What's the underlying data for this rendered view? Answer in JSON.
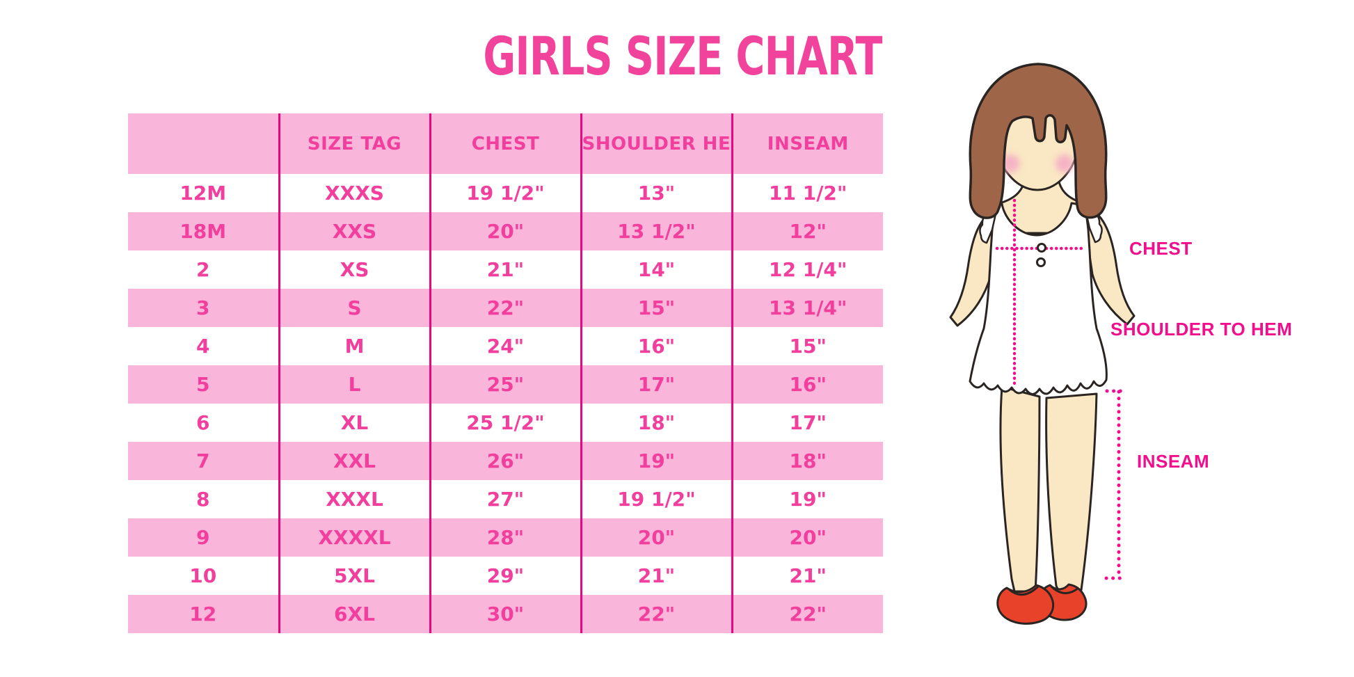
{
  "title": "GIRLS SIZE CHART",
  "chart_data": {
    "type": "table",
    "title": "GIRLS SIZE CHART",
    "columns": [
      "",
      "SIZE TAG",
      "CHEST",
      "SHOULDER HEM",
      "INSEAM"
    ],
    "rows": [
      [
        "12M",
        "XXXS",
        "19 1/2\"",
        "13\"",
        "11 1/2\""
      ],
      [
        "18M",
        "XXS",
        "20\"",
        "13 1/2\"",
        "12\""
      ],
      [
        "2",
        "XS",
        "21\"",
        "14\"",
        "12 1/4\""
      ],
      [
        "3",
        "S",
        "22\"",
        "15\"",
        "13 1/4\""
      ],
      [
        "4",
        "M",
        "24\"",
        "16\"",
        "15\""
      ],
      [
        "5",
        "L",
        "25\"",
        "17\"",
        "16\""
      ],
      [
        "6",
        "XL",
        "25 1/2\"",
        "18\"",
        "17\""
      ],
      [
        "7",
        "XXL",
        "26\"",
        "19\"",
        "18\""
      ],
      [
        "8",
        "XXXL",
        "27\"",
        "19 1/2\"",
        "19\""
      ],
      [
        "9",
        "XXXXL",
        "28\"",
        "20\"",
        "20\""
      ],
      [
        "10",
        "5XL",
        "29\"",
        "21\"",
        "21\""
      ],
      [
        "12",
        "6XL",
        "30\"",
        "22\"",
        "22\""
      ]
    ],
    "row_striping": "alternating pink and white, header pink",
    "legend_position": "none",
    "grid": "vertical column separators only"
  },
  "figure": {
    "description": "cartoon girl with brown bob haircut, white sleeveless ruffle top, red mary-jane shoes, faceless with blush cheeks",
    "labels": {
      "chest": "CHEST",
      "shoulder_to_hem": "SHOULDER TO HEM",
      "inseam": "INSEAM"
    }
  },
  "colors": {
    "row_pink": "#FAB5DB",
    "line_pink": "#E5087E",
    "text_pink": "#F23E9D",
    "title_pink": "#F1429C",
    "label_magenta": "#F10D8C",
    "hair_brown": "#9F6548",
    "skin": "#FAE7C4",
    "blush": "#F5B3C5",
    "shoe_red": "#E8432A",
    "outline": "#2A2522"
  }
}
